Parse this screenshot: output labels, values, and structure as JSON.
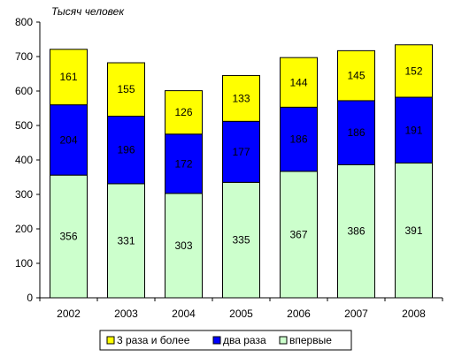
{
  "chart_data": {
    "type": "bar",
    "stacked": true,
    "title": "",
    "unit_label": "Тысяч человек",
    "xlabel": "",
    "ylabel": "",
    "ylim": [
      0,
      800
    ],
    "yticks": [
      0,
      100,
      200,
      300,
      400,
      500,
      600,
      700,
      800
    ],
    "grid": false,
    "legend_position": "bottom",
    "categories": [
      "2002",
      "2003",
      "2004",
      "2005",
      "2006",
      "2007",
      "2008"
    ],
    "series": [
      {
        "name": "впервые",
        "color": "#CCFFCC",
        "values": [
          356,
          331,
          303,
          335,
          367,
          386,
          391
        ]
      },
      {
        "name": "два раза",
        "color": "#0000FF",
        "values": [
          204,
          196,
          172,
          177,
          186,
          186,
          191
        ]
      },
      {
        "name": "3 раза и более",
        "color": "#FFFF00",
        "values": [
          161,
          155,
          126,
          133,
          144,
          145,
          152
        ]
      }
    ],
    "legend_order": [
      "3 раза и более",
      "два раза",
      "впервые"
    ]
  }
}
